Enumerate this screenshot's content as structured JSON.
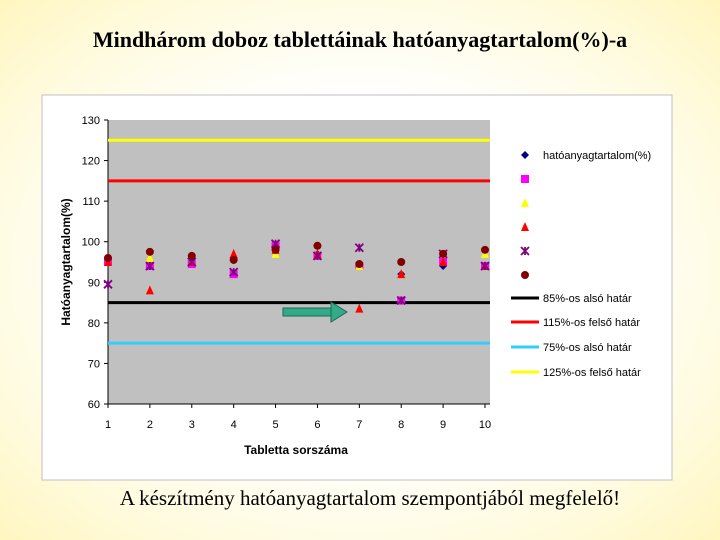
{
  "chart_data": {
    "type": "scatter",
    "title": "Mindhárom doboz tablettáinak hatóanyagtartalom(%)-a",
    "subtitle": "A készítmény hatóanyagtartalom szempontjából megfelelő!",
    "x_label": "Tabletta sorszáma",
    "y_label": "Hatóanyagtartalom(%)",
    "x": [
      1,
      2,
      3,
      4,
      5,
      6,
      7,
      8,
      9,
      10
    ],
    "xlim": [
      1,
      10
    ],
    "xticks": [
      1,
      2,
      3,
      4,
      5,
      6,
      7,
      8,
      9,
      10
    ],
    "ylim": [
      60,
      130
    ],
    "yticks": [
      60,
      70,
      80,
      90,
      100,
      110,
      120,
      130
    ],
    "grid": false,
    "legend": "right",
    "series": [
      {
        "name": "hatóanyagtartalom(%)",
        "color": "#000080",
        "marker": "diamond",
        "values": [
          95,
          94,
          95,
          96,
          98,
          97,
          94,
          92,
          94,
          94
        ]
      },
      {
        "color": "#ff00ff",
        "marker": "square",
        "values": [
          95,
          94,
          94.5,
          92,
          99,
          96.5,
          94,
          85.5,
          95,
          94
        ]
      },
      {
        "color": "#ffff00",
        "marker": "triangle",
        "values": [
          95,
          96,
          95,
          96,
          97,
          97,
          94,
          92,
          97,
          97
        ]
      },
      {
        "color": "#ff0000",
        "marker": "triangle",
        "values": [
          95,
          88,
          95,
          97,
          98,
          97,
          83.5,
          92,
          95,
          94
        ]
      },
      {
        "color": "#800080",
        "marker": "x",
        "values": [
          89.5,
          94,
          95,
          92.5,
          99.5,
          96.5,
          98.5,
          85.5,
          97,
          94
        ]
      },
      {
        "color": "#800000",
        "marker": "circle",
        "values": [
          96,
          97.5,
          96.5,
          95.5,
          98,
          99,
          94.5,
          95,
          97,
          98
        ]
      }
    ],
    "reference_lines": [
      {
        "name": "85%-os alsó határ",
        "value": 85,
        "color": "#000000"
      },
      {
        "name": "115%-os felső határ",
        "value": 115,
        "color": "#ff0000"
      },
      {
        "name": "75%-os alsó határ",
        "value": 75,
        "color": "#33ccff"
      },
      {
        "name": "125%-os felső határ",
        "value": 125,
        "color": "#ffff00"
      }
    ]
  }
}
